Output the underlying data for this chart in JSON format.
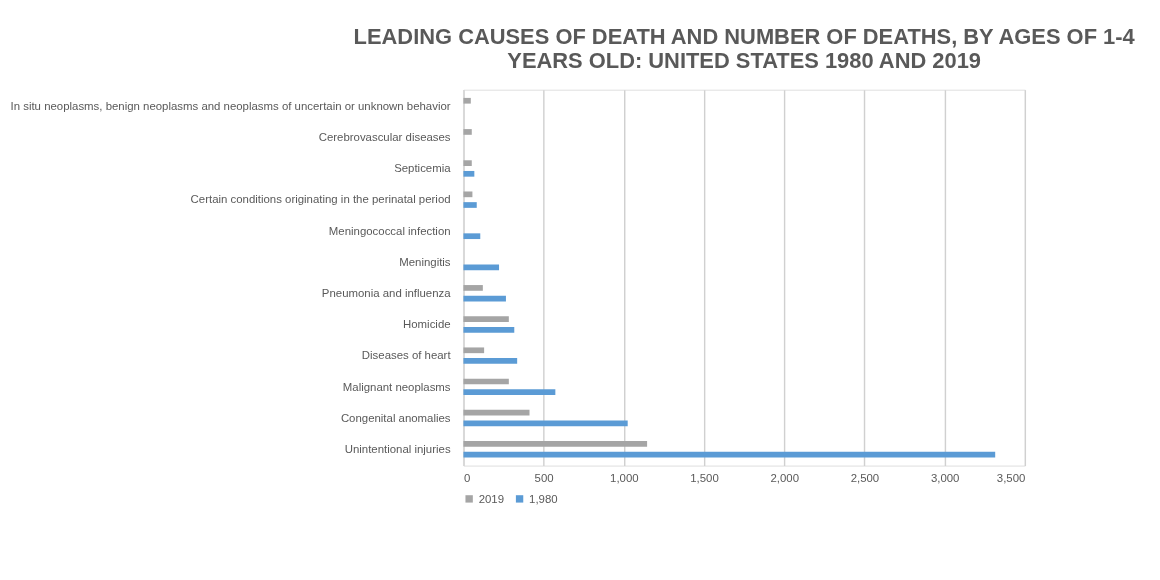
{
  "chart_data": {
    "type": "bar",
    "orientation": "horizontal",
    "title": "LEADING CAUSES OF DEATH AND NUMBER OF DEATHS, BY AGES OF 1-4 YEARS OLD: UNITED STATES 1980 AND 2019",
    "categories": [
      "In situ neoplasms, benign neoplasms and neoplasms of uncertain or unknown behavior",
      "Cerebrovascular diseases",
      "Septicemia",
      "Certain conditions originating in the perinatal period",
      "Meningococcal infection",
      "Meningitis",
      "Pneumonia and influenza",
      "Homicide",
      "Diseases of heart",
      "Malignant neoplasms",
      "Congenital anomalies",
      "Unintentional injuries"
    ],
    "series": [
      {
        "name": "2019",
        "color": "#a5a5a5",
        "values": [
          46,
          52,
          52,
          56,
          null,
          null,
          121,
          283,
          129,
          283,
          412,
          1145
        ]
      },
      {
        "name": "1,980",
        "color": "#5b9bd5",
        "values": [
          null,
          null,
          68,
          83,
          105,
          222,
          265,
          317,
          335,
          573,
          1024,
          3315
        ]
      }
    ],
    "xlim": [
      0,
      3500
    ],
    "xticks": [
      {
        "value": 0,
        "label": "0"
      },
      {
        "value": 500,
        "label": "500"
      },
      {
        "value": 1000,
        "label": "1,000"
      },
      {
        "value": 1500,
        "label": "1,500"
      },
      {
        "value": 2000,
        "label": "2,000"
      },
      {
        "value": 2500,
        "label": "2,500"
      },
      {
        "value": 3000,
        "label": "3,000"
      },
      {
        "value": 3500,
        "label": "3,500"
      }
    ],
    "grid": "x",
    "legend": "bottom"
  }
}
